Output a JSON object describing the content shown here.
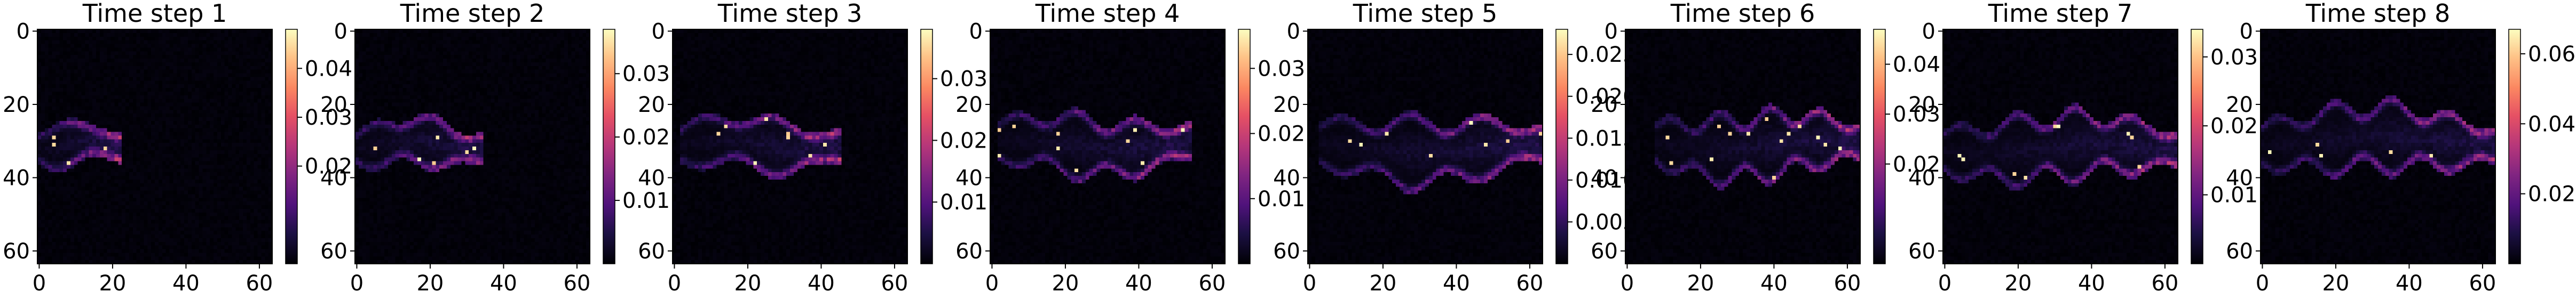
{
  "chart_data": [
    {
      "type": "heatmap",
      "title": "Time step 1",
      "xlim": [
        0,
        63
      ],
      "ylim": [
        0,
        63
      ],
      "xticks": [
        "0",
        "20",
        "40",
        "60"
      ],
      "yticks": [
        "0",
        "20",
        "40",
        "60"
      ],
      "colormap": "magma",
      "colorbar": {
        "min": 0.0,
        "max": 0.048,
        "ticks": [
          "0.02",
          "0.03",
          "0.04"
        ]
      },
      "plume": {
        "tip_x": 21,
        "start_x": 0,
        "center_y": 31,
        "half_width": 5,
        "lobes": 1,
        "peak": 0.048
      }
    },
    {
      "type": "heatmap",
      "title": "Time step 2",
      "xlim": [
        0,
        63
      ],
      "ylim": [
        0,
        63
      ],
      "xticks": [
        "0",
        "20",
        "40",
        "60"
      ],
      "yticks": [
        "0",
        "20",
        "40",
        "60"
      ],
      "colormap": "magma",
      "colorbar": {
        "min": 0.0,
        "max": 0.037,
        "ticks": [
          "0.01",
          "0.02",
          "0.03"
        ]
      },
      "plume": {
        "tip_x": 33,
        "start_x": 0,
        "center_y": 31,
        "half_width": 6,
        "lobes": 2,
        "peak": 0.037
      }
    },
    {
      "type": "heatmap",
      "title": "Time step 3",
      "xlim": [
        0,
        63
      ],
      "ylim": [
        0,
        63
      ],
      "xticks": [
        "0",
        "20",
        "40",
        "60"
      ],
      "yticks": [
        "0",
        "20",
        "40",
        "60"
      ],
      "colormap": "magma",
      "colorbar": {
        "min": 0.0,
        "max": 0.038,
        "ticks": [
          "0.01",
          "0.02",
          "0.03"
        ]
      },
      "plume": {
        "tip_x": 43,
        "start_x": 2,
        "center_y": 31,
        "half_width": 7,
        "lobes": 2,
        "peak": 0.038
      }
    },
    {
      "type": "heatmap",
      "title": "Time step 4",
      "xlim": [
        0,
        63
      ],
      "ylim": [
        0,
        63
      ],
      "xticks": [
        "0",
        "20",
        "40",
        "60"
      ],
      "yticks": [
        "0",
        "20",
        "40",
        "60"
      ],
      "colormap": "magma",
      "colorbar": {
        "min": 0.0,
        "max": 0.036,
        "ticks": [
          "0.01",
          "0.02",
          "0.03"
        ]
      },
      "plume": {
        "tip_x": 52,
        "start_x": 2,
        "center_y": 31,
        "half_width": 8,
        "lobes": 3,
        "peak": 0.036
      }
    },
    {
      "type": "heatmap",
      "title": "Time step 5",
      "xlim": [
        0,
        63
      ],
      "ylim": [
        0,
        63
      ],
      "xticks": [
        "0",
        "20",
        "40",
        "60"
      ],
      "yticks": [
        "0",
        "20",
        "40",
        "60"
      ],
      "colormap": "magma",
      "colorbar": {
        "min": 0.0,
        "max": 0.028,
        "ticks": [
          "0.005",
          "0.010",
          "0.015",
          "0.020",
          "0.025"
        ]
      },
      "plume": {
        "tip_x": 62,
        "start_x": 3,
        "center_y": 32,
        "half_width": 9,
        "lobes": 3,
        "peak": 0.028
      }
    },
    {
      "type": "heatmap",
      "title": "Time step 6",
      "xlim": [
        0,
        63
      ],
      "ylim": [
        0,
        63
      ],
      "xticks": [
        "0",
        "20",
        "40",
        "60"
      ],
      "yticks": [
        "0",
        "20",
        "40",
        "60"
      ],
      "colormap": "magma",
      "colorbar": {
        "min": 0.0,
        "max": 0.047,
        "ticks": [
          "0.02",
          "0.03",
          "0.04"
        ]
      },
      "plume": {
        "tip_x": 63,
        "start_x": 8,
        "center_y": 31,
        "half_width": 9,
        "lobes": 4,
        "peak": 0.047
      }
    },
    {
      "type": "heatmap",
      "title": "Time step 7",
      "xlim": [
        0,
        63
      ],
      "ylim": [
        0,
        63
      ],
      "xticks": [
        "0",
        "20",
        "40",
        "60"
      ],
      "yticks": [
        "0",
        "20",
        "40",
        "60"
      ],
      "colormap": "magma",
      "colorbar": {
        "min": 0.0,
        "max": 0.034,
        "ticks": [
          "0.01",
          "0.02",
          "0.03"
        ]
      },
      "plume": {
        "tip_x": 63,
        "start_x": 0,
        "center_y": 32,
        "half_width": 9,
        "lobes": 4,
        "peak": 0.034
      }
    },
    {
      "type": "heatmap",
      "title": "Time step 8",
      "xlim": [
        0,
        63
      ],
      "ylim": [
        0,
        63
      ],
      "xticks": [
        "0",
        "20",
        "40",
        "60"
      ],
      "yticks": [
        "0",
        "20",
        "40",
        "60"
      ],
      "colormap": "magma",
      "colorbar": {
        "min": 0.0,
        "max": 0.067,
        "ticks": [
          "0.02",
          "0.04",
          "0.06"
        ]
      },
      "plume": {
        "tip_x": 63,
        "start_x": 0,
        "center_y": 30,
        "half_width": 9,
        "lobes": 4,
        "peak": 0.067
      }
    }
  ]
}
